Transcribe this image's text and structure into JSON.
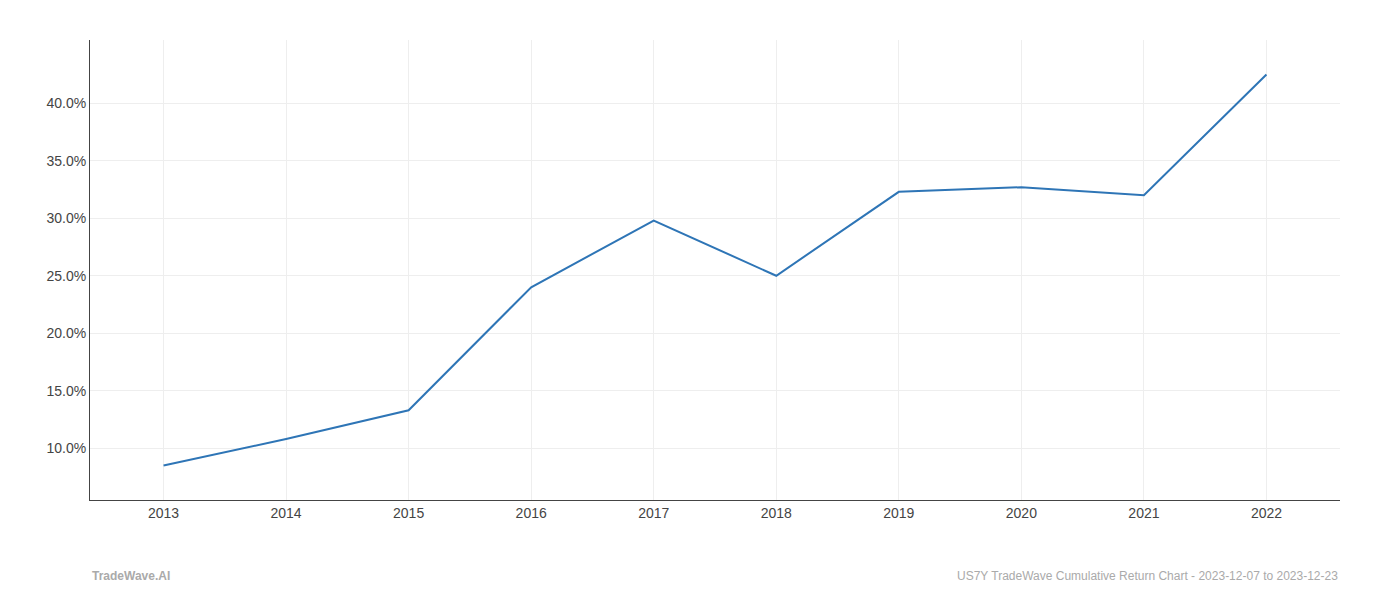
{
  "chart_data": {
    "type": "line",
    "x": [
      2013,
      2014,
      2015,
      2016,
      2017,
      2018,
      2019,
      2020,
      2021,
      2022
    ],
    "values": [
      0.085,
      0.108,
      0.133,
      0.24,
      0.298,
      0.25,
      0.323,
      0.327,
      0.32,
      0.425
    ],
    "color": "#2e75b6",
    "xlim": [
      2012.4,
      2022.6
    ],
    "xticks": [
      2013,
      2014,
      2015,
      2016,
      2017,
      2018,
      2019,
      2020,
      2021,
      2022
    ],
    "ylim": [
      0.055,
      0.455
    ],
    "yticks": [
      {
        "value": 0.1,
        "label": "10.0%"
      },
      {
        "value": 0.15,
        "label": "15.0%"
      },
      {
        "value": 0.2,
        "label": "20.0%"
      },
      {
        "value": 0.25,
        "label": "25.0%"
      },
      {
        "value": 0.3,
        "label": "30.0%"
      },
      {
        "value": 0.35,
        "label": "35.0%"
      },
      {
        "value": 0.4,
        "label": "40.0%"
      }
    ],
    "grid": true,
    "annotations": [
      "TradeWave.AI",
      "US7Y TradeWave Cumulative Return Chart - 2023-12-07 to 2023-12-23"
    ]
  }
}
